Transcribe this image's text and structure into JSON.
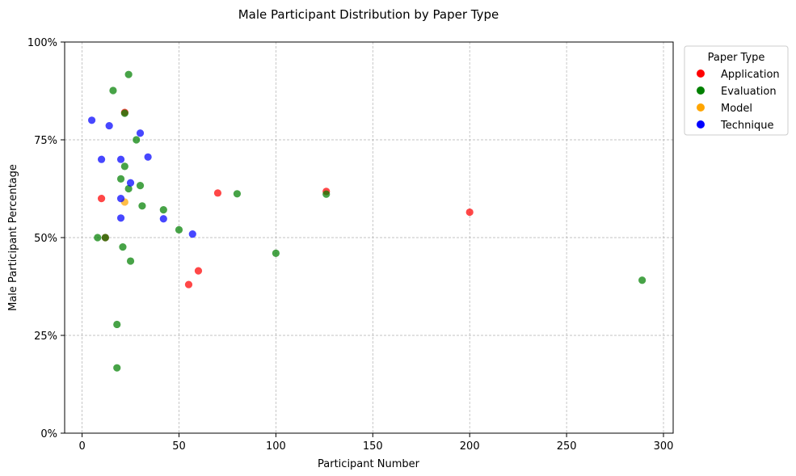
{
  "chart_data": {
    "type": "scatter",
    "title": "Male Participant Distribution by Paper Type",
    "xlabel": "Participant Number",
    "ylabel": "Male Participant Percentage",
    "xlim": [
      -9,
      305
    ],
    "ylim": [
      0,
      100
    ],
    "xticks": [
      0,
      50,
      100,
      150,
      200,
      250,
      300
    ],
    "xtick_labels": [
      "0",
      "50",
      "100",
      "150",
      "200",
      "250",
      "300"
    ],
    "yticks": [
      0,
      25,
      50,
      75,
      100
    ],
    "ytick_labels": [
      "0%",
      "25%",
      "50%",
      "75%",
      "100%"
    ],
    "grid": true,
    "legend": {
      "title": "Paper Type",
      "position": "outside-top-right"
    },
    "series": [
      {
        "name": "Application",
        "color": "#ff0000",
        "points": [
          [
            10,
            60
          ],
          [
            12,
            50
          ],
          [
            22,
            82
          ],
          [
            55,
            38
          ],
          [
            60,
            41.5
          ],
          [
            70,
            61.4
          ],
          [
            126,
            61.8
          ],
          [
            200,
            56.5
          ]
        ]
      },
      {
        "name": "Evaluation",
        "color": "#008000",
        "points": [
          [
            8,
            50
          ],
          [
            12,
            50
          ],
          [
            16,
            87.6
          ],
          [
            18,
            27.8
          ],
          [
            18,
            16.7
          ],
          [
            20,
            65
          ],
          [
            21,
            47.6
          ],
          [
            22,
            68.2
          ],
          [
            22,
            81.8
          ],
          [
            24,
            91.7
          ],
          [
            24,
            62.5
          ],
          [
            25,
            44
          ],
          [
            28,
            75
          ],
          [
            30,
            63.3
          ],
          [
            31,
            58.1
          ],
          [
            42,
            57.1
          ],
          [
            50,
            52
          ],
          [
            80,
            61.2
          ],
          [
            100,
            46
          ],
          [
            126,
            61.1
          ],
          [
            289,
            39.1
          ]
        ]
      },
      {
        "name": "Model",
        "color": "#ffa500",
        "points": [
          [
            22,
            59.1
          ]
        ]
      },
      {
        "name": "Technique",
        "color": "#0000ff",
        "points": [
          [
            5,
            80
          ],
          [
            10,
            70
          ],
          [
            14,
            78.6
          ],
          [
            20,
            70
          ],
          [
            20,
            60
          ],
          [
            20,
            55
          ],
          [
            25,
            64
          ],
          [
            30,
            76.7
          ],
          [
            34,
            70.6
          ],
          [
            42,
            54.8
          ],
          [
            57,
            50.9
          ]
        ]
      }
    ]
  }
}
